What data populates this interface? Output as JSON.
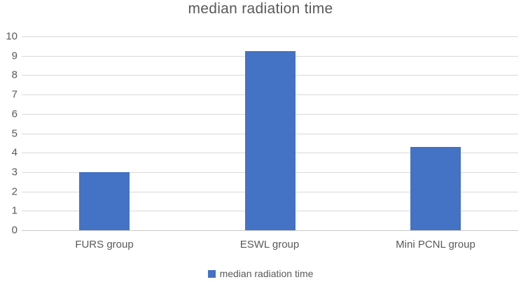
{
  "chart_data": {
    "type": "bar",
    "title": "median radiation time",
    "categories": [
      "FURS group",
      "ESWL group",
      "Mini PCNL group"
    ],
    "series": [
      {
        "name": "median radiation time",
        "values": [
          3,
          9.25,
          4.3
        ]
      }
    ],
    "xlabel": "",
    "ylabel": "",
    "ylim": [
      0,
      10
    ],
    "yticks": [
      0,
      1,
      2,
      3,
      4,
      5,
      6,
      7,
      8,
      9,
      10
    ],
    "grid": true,
    "legend": {
      "position": "bottom",
      "label": "median radiation time"
    },
    "colors": {
      "bar": "#4472C4",
      "title_text": "#595959",
      "tick_text": "#595959",
      "gridline": "#D9D9D9",
      "axis_line": "#C9C9C9",
      "background": "#FFFFFF"
    }
  }
}
